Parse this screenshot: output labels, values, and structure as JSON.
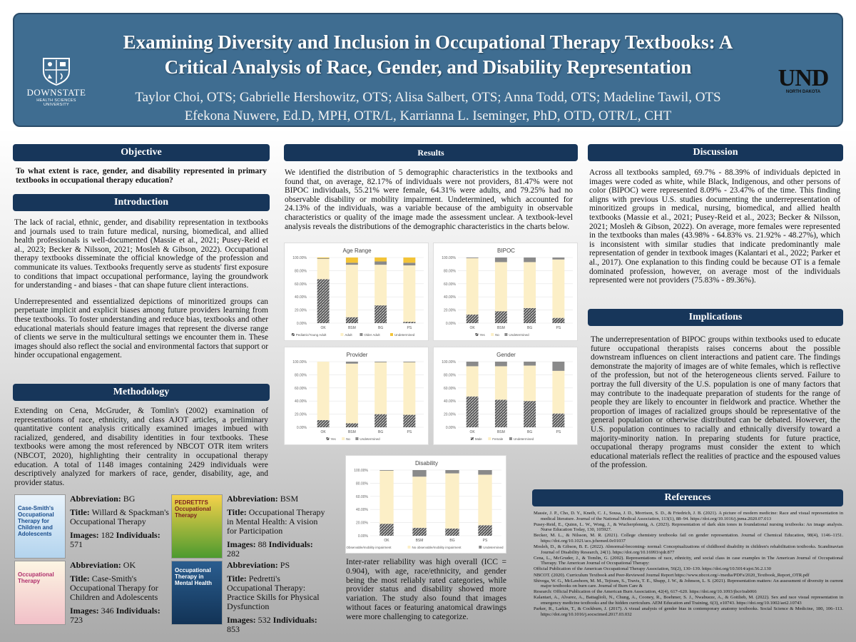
{
  "header": {
    "title": "Examining Diversity and Inclusion in Occupational Therapy Textbooks: A Critical Analysis of Race, Gender, and Disability Representation",
    "authors_line1": "Taylor Choi, OTS; Gabrielle Hershowitz, OTS; Alisa Salbert, OTS; Anna Todd, OTS; Madeline Tawil, OTS",
    "authors_line2": "Efekona Nuwere, Ed.D, MPH, OTR/L, Karrianna L. Iseminger, PhD, OTD, OTR/L, CHT",
    "logo_left_name": "DOWNSTATE",
    "logo_left_sub": "HEALTH SCIENCES UNIVERSITY",
    "logo_right_main": "UND",
    "logo_right_sub": "NORTH DAKOTA"
  },
  "objective": {
    "heading": "Objective",
    "question": "To what extent is race, gender, and disability represented in primary textbooks in occupational therapy education?"
  },
  "introduction": {
    "heading": "Introduction",
    "p1": "The lack of racial, ethnic, gender, and disability representation in textbooks and journals used to train future medical, nursing, biomedical, and allied health professionals is well-documented (Massie et al., 2021; Pusey-Reid et al., 2023; Becker & Nilsson, 2021; Mosleh & Gibson, 2022). Occupational therapy textbooks disseminate the official knowledge of the profession and communicate its values. Textbooks frequently serve as students' first exposure to conditions that impact occupational performance, laying the groundwork for understanding - and biases - that can shape future client interactions.",
    "p2": "Underrepresented and essentialized depictions of minoritized groups can perpetuate implicit and explicit biases among future providers learning from these textbooks. To foster understanding and reduce bias, textbooks and other educational materials should feature images that represent the diverse range of clients we serve in the multicultural settings we encounter them in. These images should also reflect the social and environmental factors that support or hinder occupational engagement."
  },
  "methodology": {
    "heading": "Methodology",
    "p1": "Extending on Cena, McGruder, & Tomlin's (2002) examination of representations of race, ethnicity, and class AJOT articles, a preliminary quantitative content analysis critically examined images imbued with racialized, gendered, and disability identities in four textbooks. These textbooks were among the most referenced by NBCOT OTR item writers (NBCOT, 2020), highlighting their centrality in occupational therapy education. A total of 1148 images containing 2429 individuals were descriptively analyzed for markers of race, gender, disability, age, and provider status."
  },
  "books": [
    {
      "abbr_label": "Abbreviation:",
      "abbr": "BG",
      "title_label": "Title:",
      "title": "Willard & Spackman's Occupational Therapy",
      "images_label": "Images:",
      "images": "182",
      "individuals_label": "Individuals:",
      "individuals": "571",
      "cover_text": "Case-Smith's Occupational Therapy for Children and Adolescents"
    },
    {
      "abbr_label": "Abbreviation:",
      "abbr": "BSM",
      "title_label": "Title:",
      "title": "Occupational Therapy in Mental Health: A vision for Participation",
      "images_label": "Images:",
      "images": "88",
      "individuals_label": "Individuals:",
      "individuals": "282",
      "cover_text": "PEDRETTI'S Occupational Therapy"
    },
    {
      "abbr_label": "Abbreviation:",
      "abbr": "OK",
      "title_label": "Title:",
      "title": "Case-Smith's Occupational Therapy for Children and Adolescents",
      "images_label": "Images:",
      "images": "346",
      "individuals_label": "Individuals:",
      "individuals": "723",
      "cover_text": "Occupational Therapy"
    },
    {
      "abbr_label": "Abbreviation:",
      "abbr": "PS",
      "title_label": "Title:",
      "title": "Pedretti's Occupational Therapy: Practice Skills for Physical Dysfunction",
      "images_label": "Images:",
      "images": "532",
      "individuals_label": "Individuals:",
      "individuals": "853",
      "cover_text": "Occupational Therapy in Mental Health"
    }
  ],
  "results": {
    "heading": "Results",
    "p1": "We identified the distribution of 5 demographic characteristics in the textbooks and found that, on average, 82.17% of individuals were not providers, 81.47% were not BIPOC individuals, 55.21% were female, 64.31% were adults, and 79.25% had no observable disability or mobility impairment. Undetermined, which accounted for 24.13% of the individuals, was a variable because of the ambiguity in observable characteristics or quality of the image made the assessment unclear. A textbook-level analysis reveals the distributions of the demographic characteristics in the charts below.",
    "p2": "Inter-rater reliability was high overall (ICC = 0.904), with age, race/ethnicity, and gender being the most reliably rated categories, while provider status and disability showed more variation. The study also found that images without faces or featuring anatomical drawings were more challenging to categorize."
  },
  "chart_data": [
    {
      "type": "bar",
      "stacked": true,
      "title": "Age Range",
      "categories": [
        "OK",
        "BSM",
        "BG",
        "PS"
      ],
      "ylim": [
        0,
        100
      ],
      "yticks": [
        "0.00%",
        "20.00%",
        "40.00%",
        "60.00%",
        "80.00%",
        "100.00%"
      ],
      "series": [
        {
          "name": "Pediatric/Young Adult",
          "values": [
            67,
            9,
            27,
            2
          ]
        },
        {
          "name": "Adult",
          "values": [
            31,
            80,
            62,
            86
          ]
        },
        {
          "name": "Older Adult",
          "values": [
            1,
            3,
            5,
            4
          ]
        },
        {
          "name": "Undetermined",
          "values": [
            1,
            8,
            6,
            8
          ]
        }
      ]
    },
    {
      "type": "bar",
      "stacked": true,
      "title": "BIPOC",
      "categories": [
        "OK",
        "BSM",
        "BG",
        "PS"
      ],
      "ylim": [
        0,
        100
      ],
      "yticks": [
        "0.00%",
        "20.00%",
        "40.00%",
        "60.00%",
        "80.00%",
        "100.00%"
      ],
      "series": [
        {
          "name": "Yes",
          "values": [
            13,
            18,
            23,
            8
          ]
        },
        {
          "name": "No",
          "values": [
            86,
            75,
            70,
            89
          ]
        },
        {
          "name": "Undetermined",
          "values": [
            1,
            7,
            7,
            3
          ]
        }
      ]
    },
    {
      "type": "bar",
      "stacked": true,
      "title": "Provider",
      "categories": [
        "OK",
        "BSM",
        "BG",
        "PS"
      ],
      "ylim": [
        0,
        100
      ],
      "yticks": [
        "0.00%",
        "20.00%",
        "40.00%",
        "60.00%",
        "80.00%",
        "100.00%"
      ],
      "series": [
        {
          "name": "Yes",
          "values": [
            11,
            6,
            20,
            19
          ]
        },
        {
          "name": "No",
          "values": [
            89,
            91,
            79,
            80
          ]
        },
        {
          "name": "Undetermined",
          "values": [
            0,
            3,
            1,
            1
          ]
        }
      ]
    },
    {
      "type": "bar",
      "stacked": true,
      "title": "Gender",
      "categories": [
        "OK",
        "BSM",
        "BG",
        "PS"
      ],
      "ylim": [
        0,
        100
      ],
      "yticks": [
        "0.00%",
        "20.00%",
        "40.00%",
        "60.00%",
        "80.00%",
        "100.00%"
      ],
      "series": [
        {
          "name": "Male",
          "values": [
            47,
            42,
            40,
            21
          ]
        },
        {
          "name": "Female",
          "values": [
            46,
            51,
            54,
            65
          ]
        },
        {
          "name": "Undetermined",
          "values": [
            7,
            7,
            6,
            14
          ]
        }
      ]
    },
    {
      "type": "bar",
      "stacked": true,
      "title": "Disability",
      "categories": [
        "OK",
        "BSM",
        "BG",
        "PS"
      ],
      "ylim": [
        0,
        100
      ],
      "yticks": [
        "0.00%",
        "20.00%",
        "40.00%",
        "60.00%",
        "80.00%",
        "100.00%"
      ],
      "series": [
        {
          "name": "Observable/mobility impairment",
          "values": [
            18,
            12,
            11,
            16
          ]
        },
        {
          "name": "No observable/mobility impairment",
          "values": [
            81,
            78,
            84,
            77
          ]
        },
        {
          "name": "Undetermined",
          "values": [
            1,
            10,
            5,
            7
          ]
        }
      ]
    }
  ],
  "discussion": {
    "heading": "Discussion",
    "p1": "Across all textbooks sampled, 69.7% - 88.39% of individuals depicted in images were coded as white, while Black, Indigenous, and other persons of color (BIPOC) were represented 8.09% - 23.47% of the time. This finding aligns with previous U.S. studies documenting the underrepresentation of minoritized groups in medical, nursing, biomedical, and allied health textbooks (Massie et al., 2021; Pusey-Reid et al., 2023; Becker & Nilsson, 2021; Mosleh & Gibson, 2022). On average, more females were represented in the textbooks than males (43.98% - 64.83% vs. 21.92% - 48.27%), which is inconsistent with similar studies that indicate predominantly male representation of gender in textbook images (Kalantari et al., 2022; Parker et al., 2017). One explanation to this finding could be because OT is a female dominated profession, however, on average most of the individuals represented were not providers (75.83% - 89.36%)."
  },
  "implications": {
    "heading": "Implications",
    "p1": "The underrepresentation of BIPOC groups within textbooks used to educate future occupational therapists raises concerns about the possible downstream influences on client interactions and patient care. The findings demonstrate the majority of images are of white females, which is reflective of the profession, but not of the heterogeneous clients served. Failure to portray the full diversity of the U.S. population is one of many factors that may contribute to the inadequate preparation of students for the range of people they are likely to encounter in fieldwork and practice. Whether the proportion of images of racialized groups should be representative of the general population or otherwise distributed can be debated. However, the U.S. population continues to racially and ethnically diversify toward a majority-minority nation. In preparing students for future practice, occupational therapy programs must consider the extent to which educational materials reflect the realities of practice and the espoused values of the profession."
  },
  "references": {
    "heading": "References",
    "items": [
      "Massie, J. P., Cho, D. Y., Kneib, C. J., Sousa, J. D., Morrison, S. D., & Friedrich, J. B. (2021). A picture of modern medicine: Race and visual representation in medical literature. Journal of the National Medical Association, 113(1), 88–94. https://doi.org/10.1016/j.jnma.2020.07.013",
      "Pusey-Reid, E., Quinn, L. W., Wong, J., & Wucherpfennig, A. (2023). Representation of dark skin tones in foundational nursing textbooks: An image analysis. Nurse Education Today, 130, 105927.",
      "Becker, M. L., & Nilsson, M. R. (2021). College chemistry textbooks fail on gender representation. Journal of Chemical Education, 98(4), 1146–1151. https://doi.org/10.1021/acs.jchemed.0c01037",
      "Mosleh, D., & Gibson, B. E. (2022). Abnormal-becoming- normal: Conceptualizations of childhood disability in children's rehabilitation textbooks. Scandinavian Journal of Disability Research, 24(1). https://doi.org/10.16993/sjdr.877",
      "Cena, L., McGruder, J., & Tomlin, G. (2002). Representations of race, ethnicity, and social class in case examples in The American Journal of Occupational Therapy. The American Journal of Occupational Therapy:",
      "Official Publication of the American Occupational Therapy Association, 56(2), 130–139. https://doi.org/10.5014/ajot.56.2.130",
      "NBCOT. (2020). Curriculum Textbook and Peer-Reviewed Journal Report https://www.nbcot.org/-/media/PDFs/2020_Textbook_Report_OTR.pdf",
      "Shivega, W. G., McLawhorn, M. M., Tejiram, S., Travis, T. E., Shupp, J. W., & Johnson, L. S. (2021). Representation matters: An assessment of diversity in current major textbooks on burn care. Journal of Burn Care &",
      "Research: Official Publication of the American Burn Association, 42(4), 617–620. https://doi.org/10.1093/jbcr/irab066",
      "Kalantari, A., Alvarez, A., Battaglioli, N., Chung, A., Cooney, R., Boehmer, S. J., Nwabueze, A., & Gottlieb, M. (2022). Sex and race visual representation in emergency medicine textbooks and the hidden curriculum. AEM Education and Training, 6(3), e10743. https://doi.org/10.1002/aet2.10743",
      "Parker, R., Larkin, T., & Cockburn, J. (2017). A visual analysis of gender bias in contemporary anatomy textbooks. Social Science & Medicine, 180, 106–113. https://doi.org/10.1016/j.socscimed.2017.03.032"
    ]
  }
}
